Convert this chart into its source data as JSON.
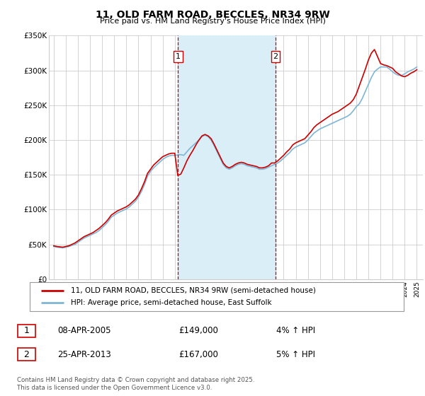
{
  "title": "11, OLD FARM ROAD, BECCLES, NR34 9RW",
  "subtitle": "Price paid vs. HM Land Registry's House Price Index (HPI)",
  "ylim": [
    0,
    350000
  ],
  "yticks": [
    0,
    50000,
    100000,
    150000,
    200000,
    250000,
    300000,
    350000
  ],
  "ytick_labels": [
    "£0",
    "£50K",
    "£100K",
    "£150K",
    "£200K",
    "£250K",
    "£300K",
    "£350K"
  ],
  "xlim_start": 1994.6,
  "xlim_end": 2025.5,
  "annotation1": {
    "x": 2005.27,
    "label": "1",
    "date": "08-APR-2005",
    "price": "£149,000",
    "hpi": "4% ↑ HPI"
  },
  "annotation2": {
    "x": 2013.32,
    "label": "2",
    "date": "25-APR-2013",
    "price": "£167,000",
    "hpi": "5% ↑ HPI"
  },
  "legend_line1": "11, OLD FARM ROAD, BECCLES, NR34 9RW (semi-detached house)",
  "legend_line2": "HPI: Average price, semi-detached house, East Suffolk",
  "footer": "Contains HM Land Registry data © Crown copyright and database right 2025.\nThis data is licensed under the Open Government Licence v3.0.",
  "line_color_red": "#cc0000",
  "line_color_blue": "#7eb6d4",
  "shade_color": "#daeef8",
  "vline_color": "#cc0000",
  "grid_color": "#cccccc",
  "bg_color": "#ffffff",
  "marker_y": 320000,
  "hpi_data_x": [
    1995.0,
    1995.25,
    1995.5,
    1995.75,
    1996.0,
    1996.25,
    1996.5,
    1996.75,
    1997.0,
    1997.25,
    1997.5,
    1997.75,
    1998.0,
    1998.25,
    1998.5,
    1998.75,
    1999.0,
    1999.25,
    1999.5,
    1999.75,
    2000.0,
    2000.25,
    2000.5,
    2000.75,
    2001.0,
    2001.25,
    2001.5,
    2001.75,
    2002.0,
    2002.25,
    2002.5,
    2002.75,
    2003.0,
    2003.25,
    2003.5,
    2003.75,
    2004.0,
    2004.25,
    2004.5,
    2004.75,
    2005.0,
    2005.25,
    2005.5,
    2005.75,
    2006.0,
    2006.25,
    2006.5,
    2006.75,
    2007.0,
    2007.25,
    2007.5,
    2007.75,
    2008.0,
    2008.25,
    2008.5,
    2008.75,
    2009.0,
    2009.25,
    2009.5,
    2009.75,
    2010.0,
    2010.25,
    2010.5,
    2010.75,
    2011.0,
    2011.25,
    2011.5,
    2011.75,
    2012.0,
    2012.25,
    2012.5,
    2012.75,
    2013.0,
    2013.25,
    2013.5,
    2013.75,
    2014.0,
    2014.25,
    2014.5,
    2014.75,
    2015.0,
    2015.25,
    2015.5,
    2015.75,
    2016.0,
    2016.25,
    2016.5,
    2016.75,
    2017.0,
    2017.25,
    2017.5,
    2017.75,
    2018.0,
    2018.25,
    2018.5,
    2018.75,
    2019.0,
    2019.25,
    2019.5,
    2019.75,
    2020.0,
    2020.25,
    2020.5,
    2020.75,
    2021.0,
    2021.25,
    2021.5,
    2021.75,
    2022.0,
    2022.25,
    2022.5,
    2022.75,
    2023.0,
    2023.25,
    2023.5,
    2023.75,
    2024.0,
    2024.25,
    2024.5,
    2024.75,
    2025.0
  ],
  "hpi_data_y": [
    47000,
    46000,
    45500,
    45000,
    46000,
    47000,
    48500,
    50000,
    53000,
    56000,
    59000,
    61000,
    63000,
    65000,
    67000,
    70000,
    74000,
    78000,
    83000,
    89000,
    92000,
    95000,
    97000,
    99000,
    101000,
    104000,
    108000,
    112000,
    118000,
    126000,
    136000,
    148000,
    155000,
    160000,
    164000,
    168000,
    172000,
    175000,
    177000,
    178000,
    178000,
    178500,
    179000,
    178000,
    183000,
    188000,
    192000,
    196000,
    200000,
    205000,
    207000,
    205000,
    200000,
    192000,
    183000,
    174000,
    165000,
    160000,
    158000,
    160000,
    163000,
    165000,
    166000,
    165000,
    163000,
    162000,
    161000,
    160000,
    158000,
    158000,
    159000,
    161000,
    163000,
    165000,
    167000,
    170000,
    174000,
    178000,
    182000,
    187000,
    190000,
    192000,
    194000,
    196000,
    200000,
    205000,
    210000,
    213000,
    216000,
    218000,
    220000,
    222000,
    224000,
    226000,
    228000,
    230000,
    232000,
    234000,
    237000,
    242000,
    248000,
    252000,
    260000,
    270000,
    280000,
    290000,
    298000,
    302000,
    305000,
    305000,
    305000,
    302000,
    298000,
    295000,
    293000,
    293000,
    295000,
    298000,
    300000,
    302000,
    305000
  ],
  "price_data_x": [
    1995.0,
    1995.25,
    1995.5,
    1995.75,
    1996.0,
    1996.25,
    1996.5,
    1996.75,
    1997.0,
    1997.25,
    1997.5,
    1997.75,
    1998.0,
    1998.25,
    1998.5,
    1998.75,
    1999.0,
    1999.25,
    1999.5,
    1999.75,
    2000.0,
    2000.25,
    2000.5,
    2000.75,
    2001.0,
    2001.25,
    2001.5,
    2001.75,
    2002.0,
    2002.25,
    2002.5,
    2002.75,
    2003.0,
    2003.25,
    2003.5,
    2003.75,
    2004.0,
    2004.25,
    2004.5,
    2004.75,
    2005.0,
    2005.25,
    2005.5,
    2005.75,
    2006.0,
    2006.25,
    2006.5,
    2006.75,
    2007.0,
    2007.25,
    2007.5,
    2007.75,
    2008.0,
    2008.25,
    2008.5,
    2008.75,
    2009.0,
    2009.25,
    2009.5,
    2009.75,
    2010.0,
    2010.25,
    2010.5,
    2010.75,
    2011.0,
    2011.25,
    2011.5,
    2011.75,
    2012.0,
    2012.25,
    2012.5,
    2012.75,
    2013.0,
    2013.25,
    2013.5,
    2013.75,
    2014.0,
    2014.25,
    2014.5,
    2014.75,
    2015.0,
    2015.25,
    2015.5,
    2015.75,
    2016.0,
    2016.25,
    2016.5,
    2016.75,
    2017.0,
    2017.25,
    2017.5,
    2017.75,
    2018.0,
    2018.25,
    2018.5,
    2018.75,
    2019.0,
    2019.25,
    2019.5,
    2019.75,
    2020.0,
    2020.25,
    2020.5,
    2020.75,
    2021.0,
    2021.25,
    2021.5,
    2021.75,
    2022.0,
    2022.25,
    2022.5,
    2022.75,
    2023.0,
    2023.25,
    2023.5,
    2023.75,
    2024.0,
    2024.25,
    2024.5,
    2024.75,
    2025.0
  ],
  "price_data_y": [
    48000,
    47000,
    46500,
    46000,
    47000,
    48000,
    50000,
    52000,
    55000,
    58000,
    61000,
    63000,
    65000,
    67000,
    70000,
    73000,
    77000,
    81000,
    86000,
    92000,
    95000,
    98000,
    100000,
    102000,
    104000,
    107000,
    111000,
    115000,
    121000,
    130000,
    140000,
    152000,
    158000,
    164000,
    168000,
    172000,
    176000,
    178000,
    180000,
    181000,
    181000,
    149000,
    151000,
    160000,
    170000,
    178000,
    185000,
    193000,
    200000,
    206000,
    208000,
    206000,
    202000,
    194000,
    185000,
    176000,
    167000,
    162000,
    160000,
    162000,
    165000,
    167000,
    168000,
    167000,
    165000,
    164000,
    163000,
    162000,
    160000,
    160000,
    161000,
    163000,
    167000,
    167000,
    170000,
    174000,
    178000,
    183000,
    187000,
    193000,
    196000,
    198000,
    200000,
    202000,
    207000,
    212000,
    218000,
    222000,
    225000,
    228000,
    231000,
    234000,
    237000,
    239000,
    241000,
    244000,
    247000,
    250000,
    253000,
    258000,
    266000,
    278000,
    290000,
    302000,
    315000,
    325000,
    330000,
    320000,
    310000,
    308000,
    307000,
    305000,
    303000,
    298000,
    295000,
    292000,
    291000,
    293000,
    296000,
    298000,
    301000
  ]
}
